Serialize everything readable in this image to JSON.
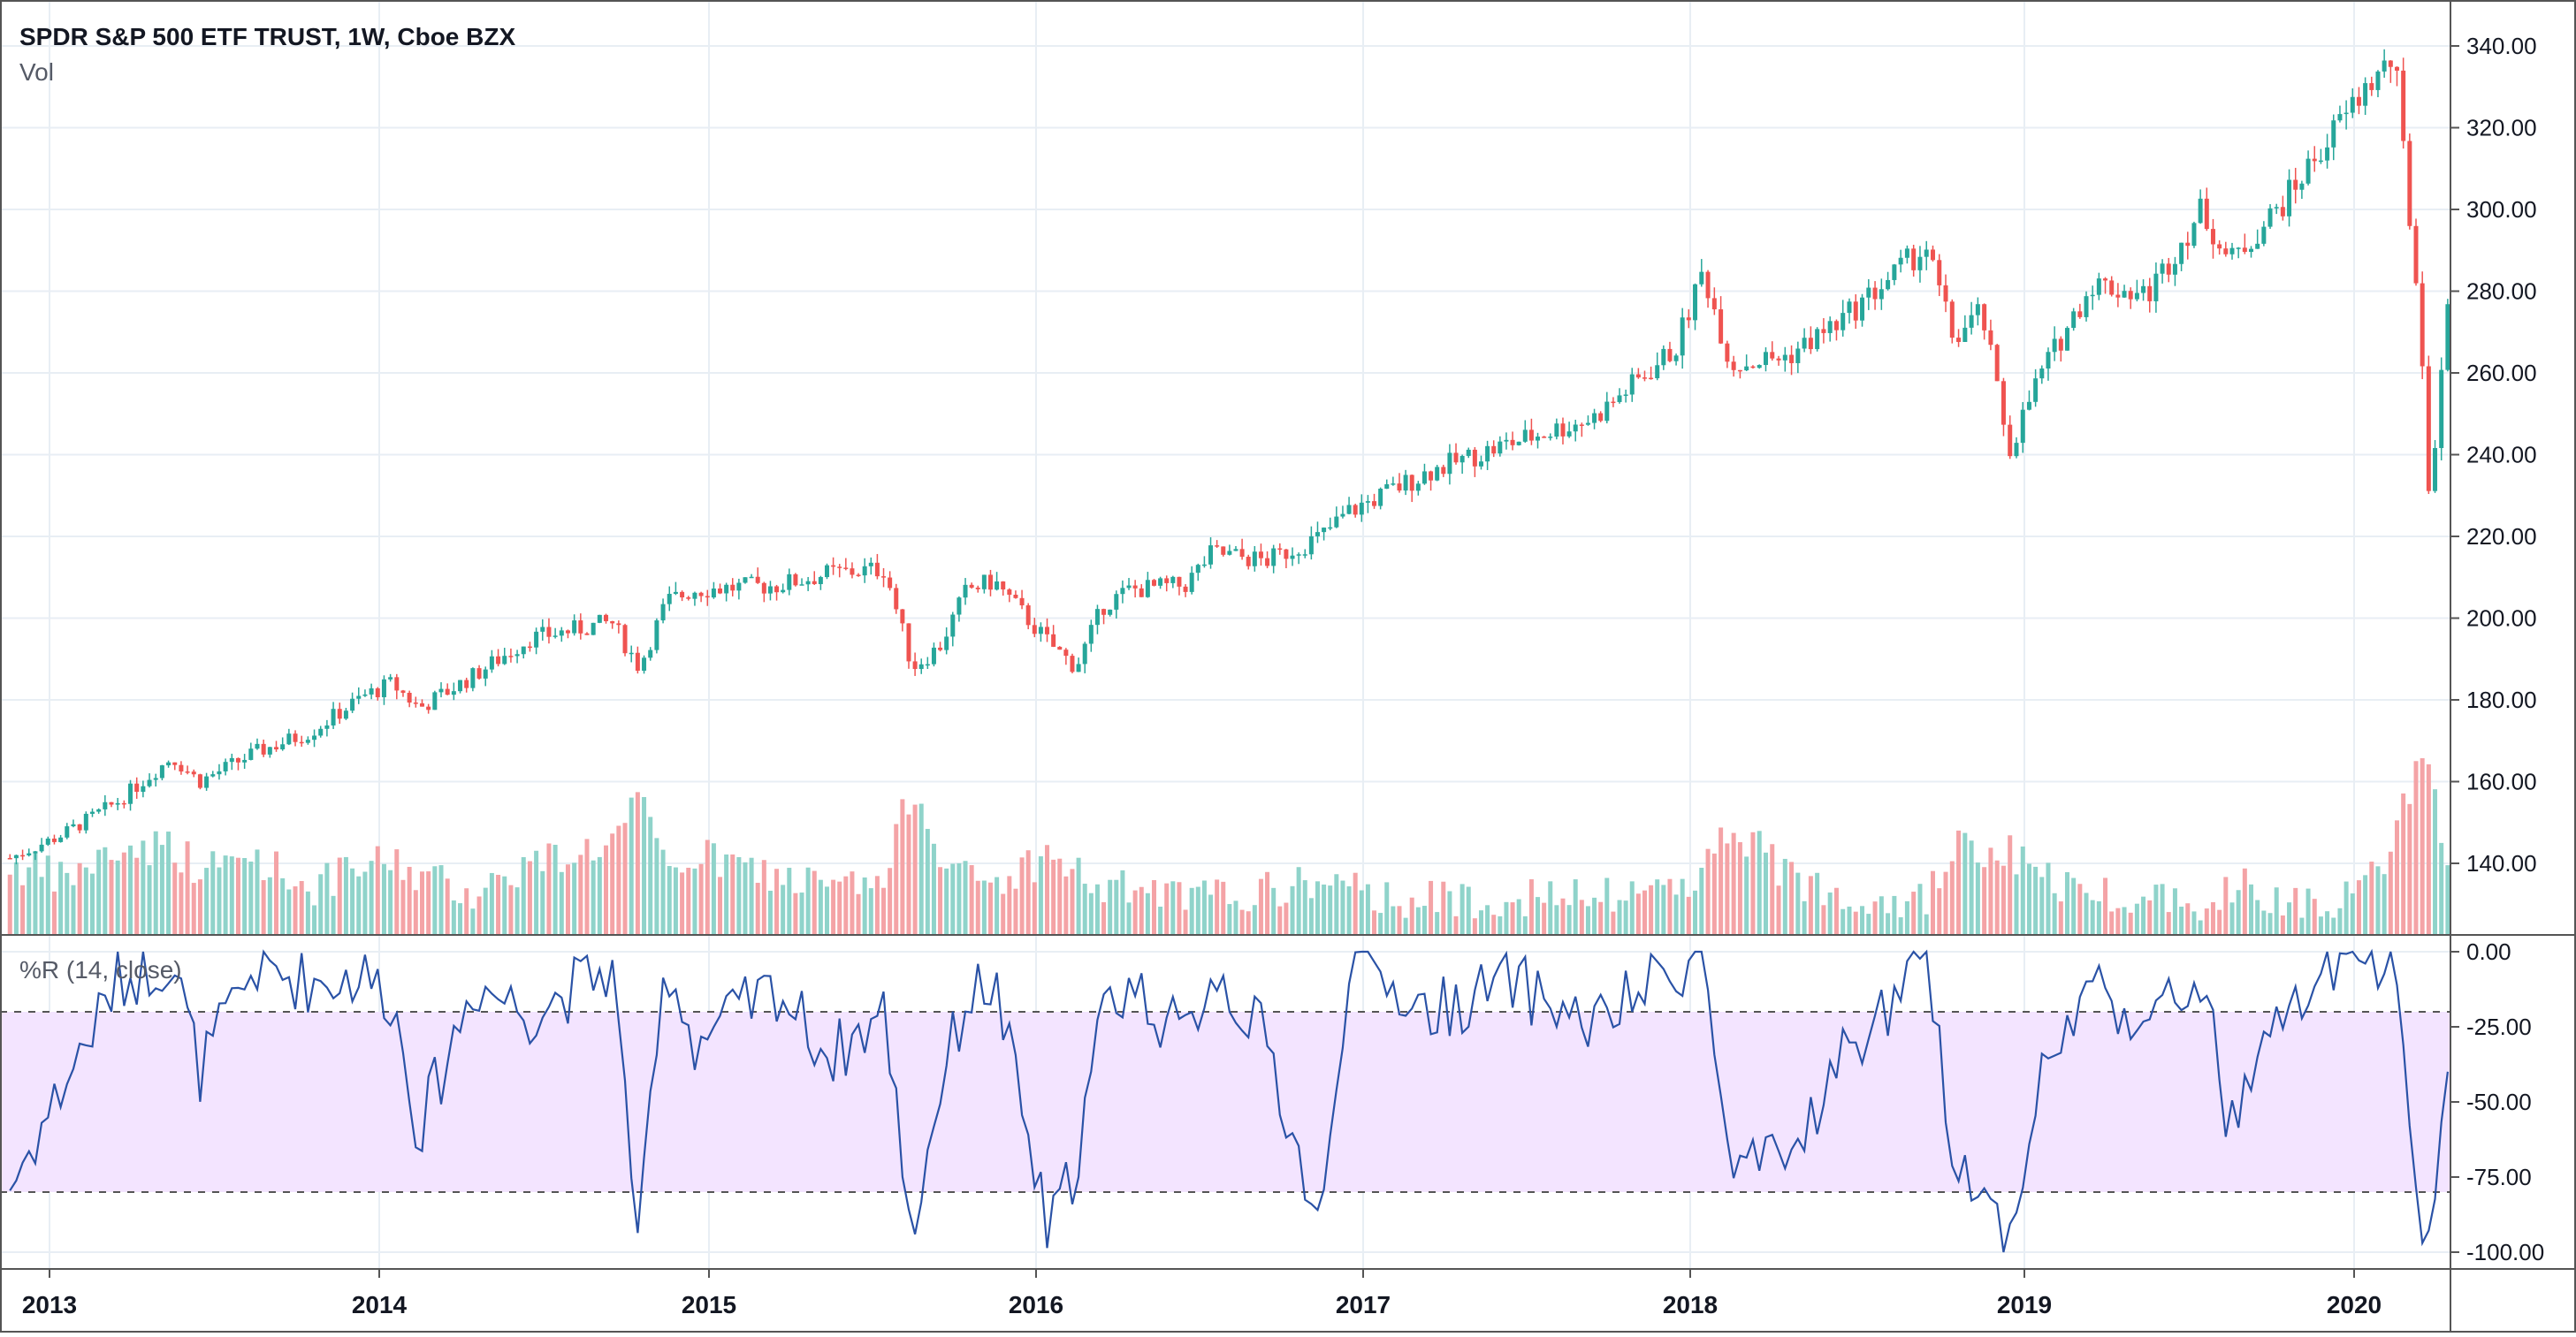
{
  "header": {
    "title": "SPDR S&P 500 ETF TRUST, 1W, Cboe BZX",
    "volume_label": "Vol"
  },
  "indicator": {
    "label": "%R (14, close)",
    "upper_band": -20,
    "lower_band": -80
  },
  "colors": {
    "up": "#26a69a",
    "down": "#ef5350",
    "up_volume": "#8fd3ca",
    "down_volume": "#f4a3a6",
    "wr_line": "#2a52a6",
    "band_fill": "#f3e4ff",
    "grid": "#e8eef4",
    "axis_text": "#131722"
  },
  "chart_data": [
    {
      "type": "candlestick",
      "title": "SPDR S&P 500 ETF TRUST, 1W, Cboe BZX",
      "y_ticks": [
        "340.00",
        "320.00",
        "300.00",
        "280.00",
        "260.00",
        "240.00",
        "220.00",
        "200.00",
        "180.00",
        "160.00",
        "140.00"
      ],
      "x_ticks": [
        "2013",
        "2014",
        "2015",
        "2016",
        "2017",
        "2018",
        "2019",
        "2020"
      ],
      "ylim": [
        125,
        345
      ],
      "series": [
        {
          "name": "Price",
          "x": [
            "2012-11",
            "2013-01",
            "2013-03",
            "2013-05",
            "2013-06",
            "2013-08",
            "2013-10",
            "2013-12",
            "2014-01",
            "2014-02",
            "2014-04",
            "2014-06",
            "2014-09",
            "2014-10",
            "2014-11",
            "2014-12",
            "2015-03",
            "2015-05",
            "2015-07",
            "2015-08",
            "2015-09",
            "2015-10",
            "2015-11",
            "2016-01",
            "2016-02",
            "2016-03",
            "2016-04",
            "2016-06",
            "2016-07",
            "2016-09",
            "2016-11",
            "2016-12",
            "2017-03",
            "2017-06",
            "2017-09",
            "2017-12",
            "2018-01",
            "2018-02",
            "2018-04",
            "2018-06",
            "2018-09",
            "2018-10",
            "2018-11",
            "2018-12",
            "2019-01",
            "2019-03",
            "2019-05",
            "2019-07",
            "2019-08",
            "2019-10",
            "2019-12",
            "2020-01",
            "2020-02",
            "2020-03",
            "2020-03-23",
            "2020-04"
          ],
          "values": [
            141,
            147,
            155,
            166,
            160,
            167,
            172,
            181,
            184,
            178,
            186,
            195,
            199,
            188,
            204,
            207,
            208,
            211,
            212,
            188,
            193,
            207,
            209,
            194,
            188,
            203,
            207,
            208,
            216,
            214,
            220,
            226,
            236,
            243,
            249,
            266,
            285,
            262,
            264,
            273,
            291,
            268,
            275,
            241,
            258,
            282,
            279,
            300,
            287,
            302,
            321,
            330,
            337,
            268,
            228,
            282
          ]
        },
        {
          "name": "Vol",
          "values": [
            140,
            136,
            143,
            145,
            138,
            142,
            134,
            139,
            141,
            137,
            133,
            140,
            145,
            155,
            138,
            142,
            137,
            134,
            135,
            160,
            144,
            136,
            135,
            142,
            138,
            133,
            134,
            131,
            132,
            133,
            136,
            133,
            131,
            132,
            131,
            135,
            138,
            150,
            137,
            133,
            131,
            144,
            142,
            143,
            137,
            133,
            132,
            131,
            135,
            132,
            131,
            134,
            145,
            170,
            160,
            143
          ]
        }
      ]
    },
    {
      "type": "line",
      "title": "%R (14, close)",
      "y_ticks": [
        "0.00",
        "-25.00",
        "-50.00",
        "-75.00",
        "-100.00"
      ],
      "ylim": [
        -104,
        4
      ],
      "series": [
        {
          "name": "%R (14, close)",
          "x": [
            "2012-11",
            "2013-01",
            "2013-03",
            "2013-05",
            "2013-06",
            "2013-08",
            "2013-10",
            "2013-12",
            "2014-01",
            "2014-02",
            "2014-04",
            "2014-06",
            "2014-09",
            "2014-10",
            "2014-11",
            "2014-12",
            "2015-03",
            "2015-05",
            "2015-07",
            "2015-08",
            "2015-09",
            "2015-10",
            "2015-11",
            "2016-01",
            "2016-02",
            "2016-03",
            "2016-04",
            "2016-06",
            "2016-07",
            "2016-09",
            "2016-11",
            "2016-12",
            "2017-03",
            "2017-06",
            "2017-09",
            "2017-12",
            "2018-01",
            "2018-02",
            "2018-04",
            "2018-06",
            "2018-09",
            "2018-10",
            "2018-11",
            "2018-12",
            "2019-01",
            "2019-03",
            "2019-05",
            "2019-07",
            "2019-08",
            "2019-10",
            "2019-12",
            "2020-01",
            "2020-02",
            "2020-03",
            "2020-03-23",
            "2020-04"
          ],
          "values": [
            -80,
            -45,
            -10,
            -2,
            -40,
            -5,
            -10,
            -8,
            -15,
            -60,
            -10,
            -20,
            -5,
            -95,
            -2,
            -30,
            -12,
            -35,
            -20,
            -95,
            -45,
            -15,
            -10,
            -95,
            -70,
            -20,
            -10,
            -30,
            -5,
            -30,
            -95,
            -2,
            -20,
            -10,
            -25,
            -5,
            -2,
            -75,
            -70,
            -35,
            -5,
            -65,
            -80,
            -95,
            -45,
            -10,
            -25,
            -8,
            -60,
            -20,
            -5,
            -2,
            -5,
            -85,
            -100,
            -45
          ]
        }
      ]
    }
  ]
}
